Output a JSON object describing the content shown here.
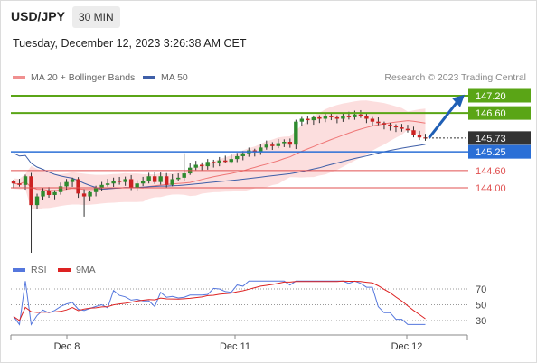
{
  "header": {
    "pair": "USD/JPY",
    "timeframe": "30 MIN",
    "datetime": "Tuesday, December 12, 2023 3:26:38 AM CET"
  },
  "legend": {
    "ma20": "MA 20 + Bollinger Bands",
    "ma50": "MA 50",
    "credit": "Research © 2023 Trading Central"
  },
  "rsi_legend": {
    "rsi": "RSI",
    "ma": "9MA"
  },
  "colors": {
    "resistance": "#5aa516",
    "support": "#e05050",
    "pivot": "#2b6fd6",
    "current": "#333333",
    "bull": "#2e8b2e",
    "bear": "#cc2222",
    "ma20": "#ef7777",
    "ma50": "#3f5fa8",
    "bands": "#fbd8d8",
    "rsi": "#5577dd",
    "rsi_ma": "#dd2222",
    "arrow": "#1f5fb5"
  },
  "chart_data": [
    {
      "type": "candlestick",
      "title": "USD/JPY",
      "x_ticks": [
        "Dec 8",
        "Dec 11",
        "Dec 12"
      ],
      "ylim": [
        143.2,
        147.3
      ],
      "levels": [
        {
          "label": "147.20",
          "value": 147.2,
          "kind": "resistance"
        },
        {
          "label": "146.60",
          "value": 146.6,
          "kind": "resistance"
        },
        {
          "label": "145.73",
          "value": 145.73,
          "kind": "current"
        },
        {
          "label": "145.25",
          "value": 145.25,
          "kind": "pivot"
        },
        {
          "label": "144.60",
          "value": 144.6,
          "kind": "support"
        },
        {
          "label": "144.00",
          "value": 144.0,
          "kind": "support"
        }
      ],
      "series": [
        {
          "name": "MA 20 + Bollinger Bands"
        },
        {
          "name": "MA 50"
        }
      ],
      "closes": [
        144.15,
        144.1,
        144.4,
        143.4,
        143.7,
        143.9,
        143.75,
        143.85,
        144.05,
        144.2,
        144.3,
        143.8,
        143.7,
        143.85,
        144.0,
        144.1,
        144.15,
        144.25,
        144.2,
        144.3,
        144.0,
        144.15,
        144.25,
        144.4,
        144.2,
        144.4,
        144.1,
        144.3,
        144.35,
        144.5,
        144.7,
        144.8,
        144.75,
        144.9,
        144.85,
        144.95,
        144.9,
        145.0,
        145.1,
        145.2,
        145.3,
        145.25,
        145.4,
        145.5,
        145.45,
        145.55,
        145.6,
        145.5,
        146.3,
        146.4,
        146.35,
        146.45,
        146.4,
        146.5,
        146.45,
        146.4,
        146.5,
        146.45,
        146.55,
        146.5,
        146.4,
        146.3,
        146.25,
        146.2,
        146.15,
        146.1,
        146.05,
        146.0,
        145.85,
        145.75,
        145.73
      ],
      "rsi": {
        "levels": [
          30,
          50,
          70
        ]
      }
    }
  ]
}
